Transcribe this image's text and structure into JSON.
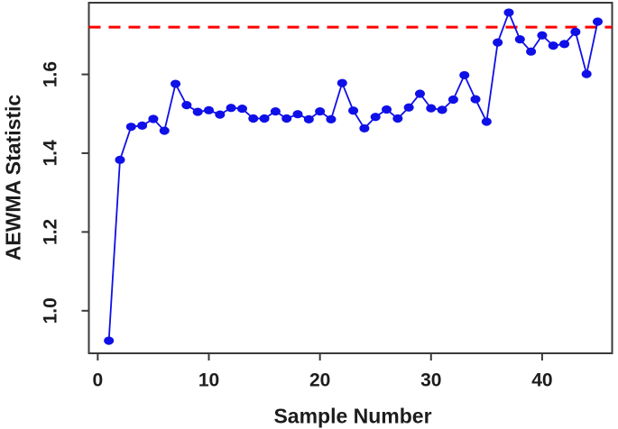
{
  "figure": {
    "background": "#ffffff"
  },
  "chart_data": {
    "type": "line",
    "title": "",
    "xlabel": "Sample Number",
    "ylabel": "AEWMA Statistic",
    "x": [
      1,
      2,
      3,
      4,
      5,
      6,
      7,
      8,
      9,
      10,
      11,
      12,
      13,
      14,
      15,
      16,
      17,
      18,
      19,
      20,
      21,
      22,
      23,
      24,
      25,
      26,
      27,
      28,
      29,
      30,
      31,
      32,
      33,
      34,
      35,
      36,
      37,
      38,
      39,
      40,
      41,
      42,
      43,
      44,
      45
    ],
    "series": [
      {
        "name": "AEWMA Statistic",
        "values": [
          0.924,
          1.383,
          1.467,
          1.47,
          1.487,
          1.457,
          1.576,
          1.522,
          1.505,
          1.509,
          1.498,
          1.515,
          1.513,
          1.488,
          1.488,
          1.506,
          1.488,
          1.499,
          1.486,
          1.506,
          1.486,
          1.578,
          1.508,
          1.463,
          1.492,
          1.511,
          1.488,
          1.516,
          1.551,
          1.514,
          1.51,
          1.536,
          1.598,
          1.537,
          1.48,
          1.681,
          1.757,
          1.689,
          1.658,
          1.699,
          1.673,
          1.677,
          1.708,
          1.601,
          1.734
        ]
      }
    ],
    "reference_line": {
      "value": 1.72,
      "style": "dashed",
      "color": "#ff0000"
    },
    "x_ticks": [
      0,
      10,
      20,
      30,
      40
    ],
    "x_tick_labels": [
      "0",
      "10",
      "20",
      "30",
      "40"
    ],
    "y_ticks": [
      1.0,
      1.2,
      1.4,
      1.6
    ],
    "y_tick_labels": [
      "1.0",
      "1.2",
      "1.4",
      "1.6"
    ],
    "x_range": [
      -0.8,
      46.3
    ],
    "y_range": [
      0.892,
      1.782
    ],
    "grid": false,
    "legend": false,
    "line_color": "#0f0fe8",
    "marker": "filled-circle",
    "axis_color": "#3a3a3a",
    "text_color": "#1c1c1c"
  }
}
